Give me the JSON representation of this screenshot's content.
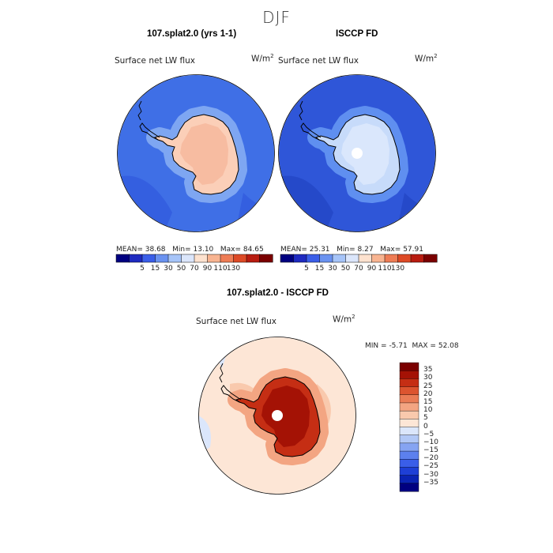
{
  "figure": {
    "suptitle": "DJF"
  },
  "chart_data": [
    {
      "type": "heatmap",
      "projection": "south-polar-stereographic",
      "title": "107.splat2.0 (yrs 1-1)",
      "field_label": "Surface net LW flux",
      "units": "W/m",
      "units_exp": "2",
      "stats": {
        "mean_label": "MEAN=",
        "mean": "38.68",
        "min_label": "Min=",
        "min": "13.10",
        "max_label": "Max=",
        "max": "84.65"
      },
      "levels": [
        5,
        15,
        30,
        50,
        70,
        90,
        110,
        130
      ],
      "colorbar_colors": [
        "#000080",
        "#1e2ac0",
        "#3a5ee8",
        "#6a92f0",
        "#a6c4f8",
        "#dbe6fb",
        "#fde2cf",
        "#f8b491",
        "#ee7c55",
        "#dd4a26",
        "#b81c10",
        "#7a0000"
      ],
      "colorbar_tick_labels": [
        "5",
        "15",
        "30",
        "50",
        "70",
        "90",
        "110",
        "130"
      ],
      "regions": {
        "ocean": "#3f6fe6",
        "open_ocean": "#345fe0",
        "coastal": "#7ea6f2",
        "interior": "#fbcfb8",
        "interior_dark": "#f6b69b"
      }
    },
    {
      "type": "heatmap",
      "projection": "south-polar-stereographic",
      "title": "ISCCP FD",
      "field_label": "Surface net LW flux",
      "units": "W/m",
      "units_exp": "2",
      "stats": {
        "mean_label": "MEAN=",
        "mean": "25.31",
        "min_label": "Min=",
        "min": "8.27",
        "max_label": "Max=",
        "max": "57.91"
      },
      "levels": [
        5,
        15,
        30,
        50,
        70,
        90,
        110,
        130
      ],
      "colorbar_colors": [
        "#000080",
        "#1e2ac0",
        "#3a5ee8",
        "#6a92f0",
        "#a6c4f8",
        "#dbe6fb",
        "#fde2cf",
        "#f8b491",
        "#ee7c55",
        "#dd4a26",
        "#b81c10",
        "#7a0000"
      ],
      "colorbar_tick_labels": [
        "5",
        "15",
        "30",
        "50",
        "70",
        "90",
        "110",
        "130"
      ],
      "regions": {
        "ocean": "#2f56d8",
        "open_ocean": "#2549c9",
        "coastal": "#5f8ff0",
        "interior": "#c7dbfa",
        "interior_dark": "#dfeafc"
      }
    },
    {
      "type": "heatmap",
      "projection": "south-polar-stereographic",
      "title": "107.splat2.0 - ISCCP FD",
      "field_label": "Surface net LW flux",
      "units": "W/m",
      "units_exp": "2",
      "stats": {
        "min_label": "MIN =",
        "min": "-5.71",
        "max_label": "MAX =",
        "max": "52.08"
      },
      "levels": [
        -35,
        -30,
        -25,
        -20,
        -15,
        -10,
        -5,
        0,
        5,
        10,
        15,
        20,
        25,
        30,
        35
      ],
      "colorbar_colors": [
        "#000080",
        "#0a23b3",
        "#1e3fd6",
        "#3a5ee8",
        "#5c80ee",
        "#86a4f2",
        "#b2c8f6",
        "#dbe6fb",
        "#fde6d6",
        "#f9c9ad",
        "#f3a582",
        "#ea7c55",
        "#dc542f",
        "#c52e14",
        "#a41205",
        "#7a0000"
      ],
      "colorbar_tick_labels": [
        "-35",
        "-30",
        "-25",
        "-20",
        "-15",
        "-10",
        "-5",
        "0",
        "5",
        "10",
        "15",
        "20",
        "25",
        "30",
        "35"
      ],
      "regions": {
        "ocean": "#fde6d6",
        "coastal": "#f3a582",
        "interior": "#c52e14",
        "interior_dark": "#a41205"
      }
    }
  ]
}
